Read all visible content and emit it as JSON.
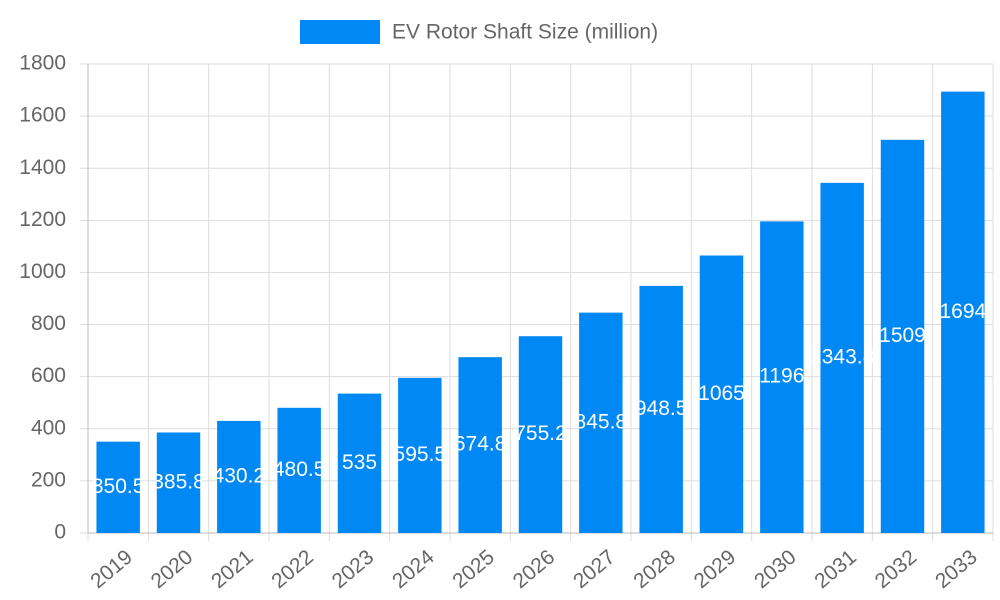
{
  "chart_data": {
    "type": "bar",
    "categories": [
      "2019",
      "2020",
      "2021",
      "2022",
      "2023",
      "2024",
      "2025",
      "2026",
      "2027",
      "2028",
      "2029",
      "2030",
      "2031",
      "2032",
      "2033"
    ],
    "series": [
      {
        "name": "EV Rotor Shaft Size (million)",
        "color": "#0088f5",
        "values": [
          350.5,
          385.8,
          430.2,
          480.5,
          535,
          595.5,
          674.8,
          755.2,
          845.8,
          948.5,
          1065,
          1196,
          1343.8,
          1509,
          1694
        ]
      }
    ],
    "ylim": [
      0,
      1800
    ],
    "yticks": [
      0,
      200,
      400,
      600,
      800,
      1000,
      1200,
      1400,
      1600,
      1800
    ],
    "grid": true
  }
}
